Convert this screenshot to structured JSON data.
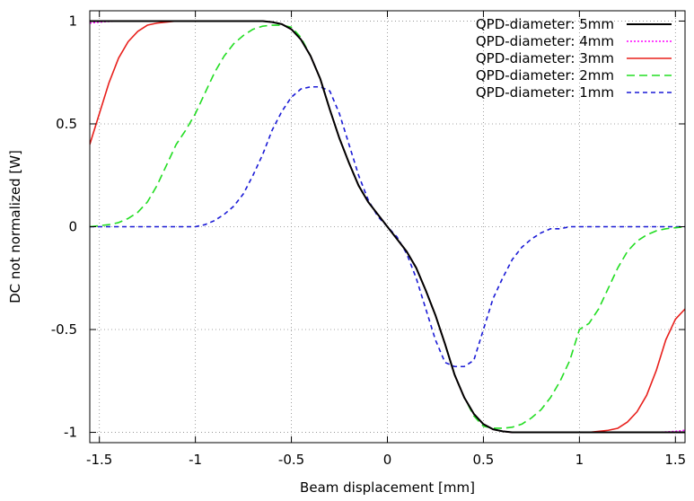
{
  "chart_data": {
    "type": "line",
    "title": "",
    "xlabel": "Beam displacement [mm]",
    "ylabel": "DC not normalized [W]",
    "xlim": [
      -1.55,
      1.55
    ],
    "ylim": [
      -1.05,
      1.05
    ],
    "xticks": [
      -1.5,
      -1,
      -0.5,
      0,
      0.5,
      1,
      1.5
    ],
    "xtick_labels": [
      "-1.5",
      "-1",
      "-0.5",
      "0",
      "0.5",
      "1",
      "1.5"
    ],
    "yticks": [
      -1,
      -0.5,
      0,
      0.5,
      1
    ],
    "ytick_labels": [
      "-1",
      "-0.5",
      "0",
      "0.5",
      "1"
    ],
    "grid": true,
    "legend_position": "top-right",
    "x": [
      -1.55,
      -1.5,
      -1.45,
      -1.4,
      -1.35,
      -1.3,
      -1.25,
      -1.2,
      -1.15,
      -1.1,
      -1.05,
      -1.0,
      -0.95,
      -0.9,
      -0.85,
      -0.8,
      -0.75,
      -0.7,
      -0.65,
      -0.6,
      -0.55,
      -0.5,
      -0.45,
      -0.4,
      -0.35,
      -0.3,
      -0.25,
      -0.2,
      -0.15,
      -0.1,
      -0.05,
      0.0,
      0.05,
      0.1,
      0.15,
      0.2,
      0.25,
      0.3,
      0.35,
      0.4,
      0.45,
      0.5,
      0.55,
      0.6,
      0.65,
      0.7,
      0.75,
      0.8,
      0.85,
      0.9,
      0.95,
      1.0,
      1.05,
      1.1,
      1.15,
      1.2,
      1.25,
      1.3,
      1.35,
      1.4,
      1.45,
      1.5,
      1.55
    ],
    "series": [
      {
        "name": "QPD-diameter: 5mm",
        "color": "#000000",
        "dash": "solid",
        "values": [
          1.0,
          1.0,
          1.0,
          1.0,
          1.0,
          1.0,
          1.0,
          1.0,
          1.0,
          1.0,
          1.0,
          1.0,
          1.0,
          1.0,
          1.0,
          1.0,
          1.0,
          1.0,
          1.0,
          0.995,
          0.985,
          0.96,
          0.91,
          0.83,
          0.72,
          0.57,
          0.43,
          0.31,
          0.2,
          0.12,
          0.06,
          0.0,
          -0.06,
          -0.12,
          -0.2,
          -0.31,
          -0.43,
          -0.57,
          -0.72,
          -0.83,
          -0.91,
          -0.96,
          -0.985,
          -0.995,
          -1.0,
          -1.0,
          -1.0,
          -1.0,
          -1.0,
          -1.0,
          -1.0,
          -1.0,
          -1.0,
          -1.0,
          -1.0,
          -1.0,
          -1.0,
          -1.0,
          -1.0,
          -1.0,
          -1.0,
          -1.0,
          -1.0
        ]
      },
      {
        "name": "QPD-diameter: 4mm",
        "color": "#ff00ff",
        "dash": "dotted",
        "values": [
          0.99,
          0.995,
          0.998,
          1.0,
          1.0,
          1.0,
          1.0,
          1.0,
          1.0,
          1.0,
          1.0,
          1.0,
          1.0,
          1.0,
          1.0,
          1.0,
          1.0,
          1.0,
          1.0,
          0.995,
          0.985,
          0.96,
          0.91,
          0.83,
          0.72,
          0.57,
          0.43,
          0.31,
          0.2,
          0.12,
          0.06,
          0.0,
          -0.06,
          -0.12,
          -0.2,
          -0.31,
          -0.43,
          -0.57,
          -0.72,
          -0.83,
          -0.91,
          -0.96,
          -0.985,
          -0.995,
          -1.0,
          -1.0,
          -1.0,
          -1.0,
          -1.0,
          -1.0,
          -1.0,
          -1.0,
          -1.0,
          -1.0,
          -1.0,
          -1.0,
          -1.0,
          -1.0,
          -1.0,
          -1.0,
          -0.998,
          -0.995,
          -0.99
        ]
      },
      {
        "name": "QPD-diameter: 3mm",
        "color": "#e8201c",
        "dash": "solid",
        "values": [
          0.4,
          0.55,
          0.7,
          0.82,
          0.9,
          0.95,
          0.98,
          0.99,
          0.995,
          1.0,
          1.0,
          1.0,
          1.0,
          1.0,
          1.0,
          1.0,
          1.0,
          1.0,
          1.0,
          0.995,
          0.985,
          0.96,
          0.91,
          0.83,
          0.72,
          0.57,
          0.43,
          0.31,
          0.2,
          0.12,
          0.06,
          0.0,
          -0.06,
          -0.12,
          -0.2,
          -0.31,
          -0.43,
          -0.57,
          -0.72,
          -0.83,
          -0.91,
          -0.96,
          -0.985,
          -0.995,
          -1.0,
          -1.0,
          -1.0,
          -1.0,
          -1.0,
          -1.0,
          -1.0,
          -1.0,
          -1.0,
          -0.995,
          -0.99,
          -0.98,
          -0.95,
          -0.9,
          -0.82,
          -0.7,
          -0.55,
          -0.45,
          -0.4
        ]
      },
      {
        "name": "QPD-diameter: 2mm",
        "color": "#22dd22",
        "dash": "dashed",
        "values": [
          0.0,
          0.005,
          0.01,
          0.02,
          0.04,
          0.07,
          0.12,
          0.2,
          0.3,
          0.4,
          0.47,
          0.55,
          0.65,
          0.75,
          0.83,
          0.89,
          0.93,
          0.96,
          0.975,
          0.98,
          0.98,
          0.97,
          0.92,
          0.83,
          0.72,
          0.57,
          0.43,
          0.31,
          0.2,
          0.12,
          0.06,
          0.0,
          -0.06,
          -0.12,
          -0.2,
          -0.31,
          -0.43,
          -0.57,
          -0.72,
          -0.83,
          -0.92,
          -0.97,
          -0.98,
          -0.98,
          -0.975,
          -0.96,
          -0.93,
          -0.89,
          -0.83,
          -0.75,
          -0.65,
          -0.5,
          -0.47,
          -0.4,
          -0.3,
          -0.2,
          -0.12,
          -0.07,
          -0.04,
          -0.02,
          -0.01,
          -0.005,
          0.0
        ]
      },
      {
        "name": "QPD-diameter: 1mm",
        "color": "#1a1ad6",
        "dash": "shortdash",
        "values": [
          0.0,
          0.0,
          0.0,
          0.0,
          0.0,
          0.0,
          0.0,
          0.0,
          0.0,
          0.0,
          0.0,
          0.0,
          0.01,
          0.03,
          0.06,
          0.1,
          0.16,
          0.25,
          0.35,
          0.47,
          0.56,
          0.63,
          0.67,
          0.68,
          0.68,
          0.66,
          0.55,
          0.4,
          0.25,
          0.13,
          0.05,
          0.0,
          -0.05,
          -0.13,
          -0.25,
          -0.4,
          -0.55,
          -0.66,
          -0.68,
          -0.68,
          -0.65,
          -0.5,
          -0.35,
          -0.25,
          -0.16,
          -0.1,
          -0.06,
          -0.03,
          -0.01,
          -0.01,
          0.0,
          0.0,
          0.0,
          0.0,
          0.0,
          0.0,
          0.0,
          0.0,
          0.0,
          0.0,
          0.0,
          0.0,
          0.0
        ]
      }
    ]
  }
}
